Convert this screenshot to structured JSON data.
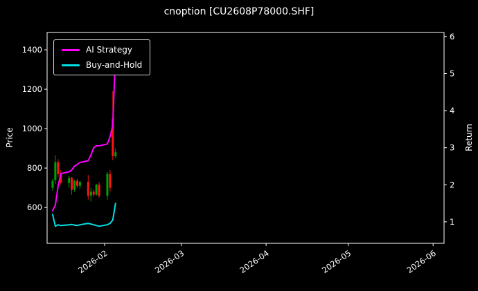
{
  "window": {
    "title": "cnoption [CU2608P78000.SHF]"
  },
  "colors": {
    "background": "#000000",
    "text": "#ffffff",
    "spine": "#ffffff",
    "ai_strategy": "#ff00ff",
    "buy_and_hold": "#00e0e6",
    "candle_up": "#00a000",
    "candle_down": "#ff1414"
  },
  "chart_data": {
    "type": "line",
    "subtype": "candlestick-with-return-lines",
    "title": "cnoption [CU2608P78000.SHF]",
    "xlabel": "",
    "ylabel_left": "Price",
    "ylabel_right": "Return",
    "grid": false,
    "legend_position": "upper-left",
    "x_ticks": [
      "2026-02",
      "2026-03",
      "2026-04",
      "2026-05",
      "2026-06"
    ],
    "x_domain": [
      "2026-01-11",
      "2026-06-05"
    ],
    "price_ticks": [
      600,
      800,
      1000,
      1200,
      1400
    ],
    "price_ylim": [
      418,
      1488
    ],
    "return_ticks": [
      1,
      2,
      3,
      4,
      5,
      6
    ],
    "return_ylim": [
      0.42,
      6.11
    ],
    "dates": [
      "2026-01-13",
      "2026-01-14",
      "2026-01-15",
      "2026-01-16",
      "2026-01-19",
      "2026-01-20",
      "2026-01-21",
      "2026-01-22",
      "2026-01-23",
      "2026-01-26",
      "2026-01-27",
      "2026-01-28",
      "2026-01-29",
      "2026-01-30",
      "2026-02-02",
      "2026-02-03",
      "2026-02-04",
      "2026-02-05"
    ],
    "candles": {
      "open": [
        700,
        740,
        830,
        770,
        725,
        750,
        690,
        735,
        710,
        730,
        660,
        680,
        665,
        715,
        660,
        770,
        1050,
        860
      ],
      "high": [
        745,
        865,
        845,
        790,
        760,
        755,
        740,
        745,
        735,
        765,
        700,
        690,
        720,
        730,
        780,
        790,
        1190,
        900
      ],
      "low": [
        685,
        720,
        755,
        715,
        700,
        665,
        680,
        700,
        695,
        640,
        630,
        655,
        660,
        650,
        640,
        680,
        840,
        850
      ],
      "close": [
        735,
        830,
        770,
        725,
        750,
        690,
        735,
        710,
        730,
        660,
        680,
        665,
        715,
        660,
        770,
        700,
        860,
        880
      ]
    },
    "series": [
      {
        "name": "AI Strategy",
        "axis": "return",
        "color_key": "ai_strategy",
        "values": [
          1.3,
          1.45,
          1.95,
          2.3,
          2.35,
          2.4,
          2.5,
          2.55,
          2.6,
          2.65,
          2.8,
          3.0,
          3.05,
          3.05,
          3.1,
          3.3,
          3.6,
          5.6
        ]
      },
      {
        "name": "Buy-and-Hold",
        "axis": "return",
        "color_key": "buy_and_hold",
        "values": [
          1.2,
          0.88,
          0.92,
          0.9,
          0.92,
          0.93,
          0.91,
          0.9,
          0.92,
          0.96,
          0.94,
          0.92,
          0.9,
          0.88,
          0.92,
          0.96,
          1.05,
          1.5
        ]
      }
    ]
  }
}
